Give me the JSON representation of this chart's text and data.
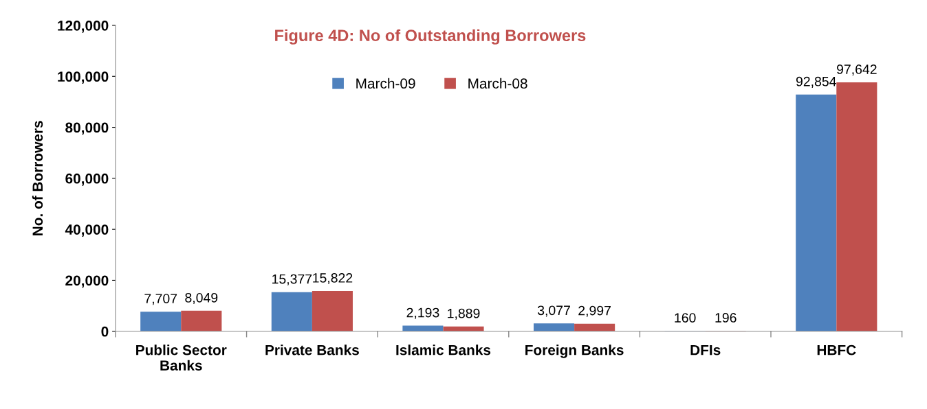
{
  "chart_data": {
    "type": "bar",
    "title": "Figure 4D: No of Outstanding Borrowers",
    "ylabel": "No. of Borrowers",
    "categories": [
      "Public Sector\nBanks",
      "Private Banks",
      "Islamic Banks",
      "Foreign Banks",
      "DFIs",
      "HBFC"
    ],
    "series": [
      {
        "name": "March-09",
        "color": "#4f81bd",
        "values": [
          7707,
          15377,
          2193,
          3077,
          160,
          92854
        ],
        "value_labels": [
          "7,707",
          "15,377",
          "2,193",
          "3,077",
          "160",
          "92,854"
        ]
      },
      {
        "name": "March-08",
        "color": "#c0504d",
        "values": [
          8049,
          15822,
          1889,
          2997,
          196,
          97642
        ],
        "value_labels": [
          "8,049",
          "15,822",
          "1,889",
          "2,997",
          "196",
          "97,642"
        ]
      }
    ],
    "ylim": [
      0,
      120000
    ],
    "yticks": [
      {
        "value": 0,
        "label": "0"
      },
      {
        "value": 20000,
        "label": "20,000"
      },
      {
        "value": 40000,
        "label": "40,000"
      },
      {
        "value": 60000,
        "label": "60,000"
      },
      {
        "value": 80000,
        "label": "80,000"
      },
      {
        "value": 100000,
        "label": "100,000"
      },
      {
        "value": 120000,
        "label": "120,000"
      }
    ],
    "grid": false,
    "legend": "top"
  }
}
